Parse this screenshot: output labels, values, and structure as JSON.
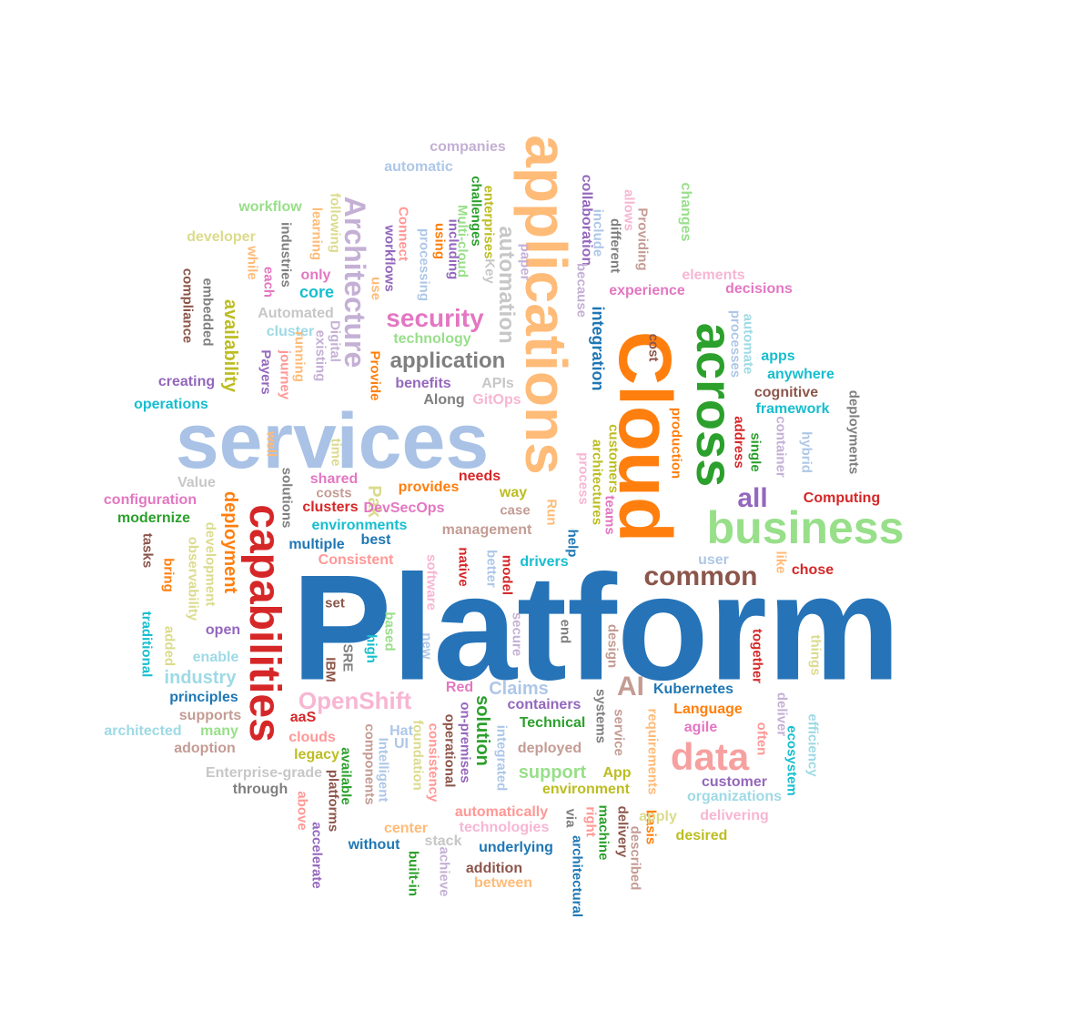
{
  "words": [
    {
      "text": "Platform",
      "color": "#2673B8"
    },
    {
      "text": "services",
      "color": "#A9C2E6"
    },
    {
      "text": "Cloud",
      "color": "#FF7F0E"
    },
    {
      "text": "applications",
      "color": "#FFBB78"
    },
    {
      "text": "business",
      "color": "#98DF8A"
    },
    {
      "text": "across",
      "color": "#2CA02C"
    },
    {
      "text": "capabilities",
      "color": "#D62728"
    },
    {
      "text": "Architecture",
      "color": "#C5B0D5"
    },
    {
      "text": "data",
      "color": "#F7A0A0"
    },
    {
      "text": "common",
      "color": "#8C564B"
    },
    {
      "text": "security",
      "color": "#E377C2"
    },
    {
      "text": "application",
      "color": "#7F7F7F"
    },
    {
      "text": "automation",
      "color": "#C7C7C7"
    },
    {
      "text": "OpenShift",
      "color": "#F7B6D2"
    },
    {
      "text": "all",
      "color": "#9467BD"
    },
    {
      "text": "integration",
      "color": "#1F77B4"
    },
    {
      "text": "AI",
      "color": "#C49C94"
    },
    {
      "text": "industry",
      "color": "#9EDAE5"
    },
    {
      "text": "availability",
      "color": "#BCBD22"
    },
    {
      "text": "deployment",
      "color": "#FF7F0E"
    },
    {
      "text": "Claims",
      "color": "#AEC7E8"
    },
    {
      "text": "support",
      "color": "#98DF8A"
    },
    {
      "text": "solution",
      "color": "#2CA02C"
    },
    {
      "text": "core",
      "color": "#17BECF"
    },
    {
      "text": "Pak",
      "color": "#DBDB8D"
    },
    {
      "text": "companies",
      "color": "#C5B0D5"
    },
    {
      "text": "automatic",
      "color": "#AEC7E8"
    },
    {
      "text": "collaboration",
      "color": "#9467BD"
    },
    {
      "text": "workflow",
      "color": "#98DF8A"
    },
    {
      "text": "changes",
      "color": "#98DF8A"
    },
    {
      "text": "enterprises",
      "color": "#BCBD22"
    },
    {
      "text": "challenges",
      "color": "#2CA02C"
    },
    {
      "text": "Multi-cloud",
      "color": "#98DF8A"
    },
    {
      "text": "Connect",
      "color": "#FF9896"
    },
    {
      "text": "using",
      "color": "#FF7F0E"
    },
    {
      "text": "including",
      "color": "#9467BD"
    },
    {
      "text": "following",
      "color": "#DBDB8D"
    },
    {
      "text": "learning",
      "color": "#FFBB78"
    },
    {
      "text": "workflows",
      "color": "#9467BD"
    },
    {
      "text": "processing",
      "color": "#AEC7E8"
    },
    {
      "text": "industries",
      "color": "#7F7F7F"
    },
    {
      "text": "developer",
      "color": "#DBDB8D"
    },
    {
      "text": "compliance",
      "color": "#8C564B"
    },
    {
      "text": "embedded",
      "color": "#7F7F7F"
    },
    {
      "text": "while",
      "color": "#FFBB78"
    },
    {
      "text": "each",
      "color": "#E377C2"
    },
    {
      "text": "only",
      "color": "#E377C2"
    },
    {
      "text": "use",
      "color": "#FFBB78"
    },
    {
      "text": "Key",
      "color": "#C7C7C7"
    },
    {
      "text": "paper",
      "color": "#C5B0D5"
    },
    {
      "text": "because",
      "color": "#C5B0D5"
    },
    {
      "text": "include",
      "color": "#AEC7E8"
    },
    {
      "text": "different",
      "color": "#7F7F7F"
    },
    {
      "text": "allows",
      "color": "#F7B6D2"
    },
    {
      "text": "Providing",
      "color": "#C49C94"
    },
    {
      "text": "elements",
      "color": "#F7B6D2"
    },
    {
      "text": "experience",
      "color": "#E377C2"
    },
    {
      "text": "decisions",
      "color": "#E377C2"
    },
    {
      "text": "Automated",
      "color": "#C7C7C7"
    },
    {
      "text": "cluster",
      "color": "#9EDAE5"
    },
    {
      "text": "technology",
      "color": "#98DF8A"
    },
    {
      "text": "Digital",
      "color": "#C5B0D5"
    },
    {
      "text": "existing",
      "color": "#C5B0D5"
    },
    {
      "text": "running",
      "color": "#FFBB78"
    },
    {
      "text": "journey",
      "color": "#FF9896"
    },
    {
      "text": "Payers",
      "color": "#9467BD"
    },
    {
      "text": "Provide",
      "color": "#FF7F0E"
    },
    {
      "text": "benefits",
      "color": "#9467BD"
    },
    {
      "text": "APIs",
      "color": "#C7C7C7"
    },
    {
      "text": "Along",
      "color": "#7F7F7F"
    },
    {
      "text": "GitOps",
      "color": "#F7B6D2"
    },
    {
      "text": "creating",
      "color": "#9467BD"
    },
    {
      "text": "operations",
      "color": "#17BECF"
    },
    {
      "text": "cost",
      "color": "#8C564B"
    },
    {
      "text": "automate",
      "color": "#9EDAE5"
    },
    {
      "text": "processes",
      "color": "#AEC7E8"
    },
    {
      "text": "apps",
      "color": "#17BECF"
    },
    {
      "text": "anywhere",
      "color": "#17BECF"
    },
    {
      "text": "cognitive",
      "color": "#8C564B"
    },
    {
      "text": "framework",
      "color": "#17BECF"
    },
    {
      "text": "deployments",
      "color": "#7F7F7F"
    },
    {
      "text": "address",
      "color": "#D62728"
    },
    {
      "text": "single",
      "color": "#2CA02C"
    },
    {
      "text": "container",
      "color": "#C5B0D5"
    },
    {
      "text": "hybrid",
      "color": "#AEC7E8"
    },
    {
      "text": "production",
      "color": "#FF7F0E"
    },
    {
      "text": "customers",
      "color": "#BCBD22"
    },
    {
      "text": "architectures",
      "color": "#BCBD22"
    },
    {
      "text": "process",
      "color": "#F7B6D2"
    },
    {
      "text": "teams",
      "color": "#E377C2"
    },
    {
      "text": "Computing",
      "color": "#D62728"
    },
    {
      "text": "well",
      "color": "#FFBB78"
    },
    {
      "text": "time",
      "color": "#DBDB8D"
    },
    {
      "text": "solutions",
      "color": "#7F7F7F"
    },
    {
      "text": "shared",
      "color": "#E377C2"
    },
    {
      "text": "costs",
      "color": "#C49C94"
    },
    {
      "text": "provides",
      "color": "#FF7F0E"
    },
    {
      "text": "needs",
      "color": "#D62728"
    },
    {
      "text": "way",
      "color": "#BCBD22"
    },
    {
      "text": "case",
      "color": "#C49C94"
    },
    {
      "text": "Value",
      "color": "#C7C7C7"
    },
    {
      "text": "configuration",
      "color": "#E377C2"
    },
    {
      "text": "modernize",
      "color": "#2CA02C"
    },
    {
      "text": "clusters",
      "color": "#D62728"
    },
    {
      "text": "DevSecOps",
      "color": "#E377C2"
    },
    {
      "text": "environments",
      "color": "#17BECF"
    },
    {
      "text": "Run",
      "color": "#FFBB78"
    },
    {
      "text": "management",
      "color": "#C49C94"
    },
    {
      "text": "help",
      "color": "#1F77B4"
    },
    {
      "text": "tasks",
      "color": "#8C564B"
    },
    {
      "text": "development",
      "color": "#DBDB8D"
    },
    {
      "text": "observability",
      "color": "#DBDB8D"
    },
    {
      "text": "multiple",
      "color": "#1F77B4"
    },
    {
      "text": "best",
      "color": "#1F77B4"
    },
    {
      "text": "Consistent",
      "color": "#FF9896"
    },
    {
      "text": "software",
      "color": "#F7B6D2"
    },
    {
      "text": "native",
      "color": "#D62728"
    },
    {
      "text": "better",
      "color": "#AEC7E8"
    },
    {
      "text": "model",
      "color": "#D62728"
    },
    {
      "text": "drivers",
      "color": "#17BECF"
    },
    {
      "text": "user",
      "color": "#AEC7E8"
    },
    {
      "text": "like",
      "color": "#FFBB78"
    },
    {
      "text": "chose",
      "color": "#D62728"
    },
    {
      "text": "bring",
      "color": "#FF7F0E"
    },
    {
      "text": "traditional",
      "color": "#17BECF"
    },
    {
      "text": "added",
      "color": "#DBDB8D"
    },
    {
      "text": "open",
      "color": "#9467BD"
    },
    {
      "text": "set",
      "color": "#8C564B"
    },
    {
      "text": "based",
      "color": "#98DF8A"
    },
    {
      "text": "high",
      "color": "#17BECF"
    },
    {
      "text": "SRE",
      "color": "#7F7F7F"
    },
    {
      "text": "IBM",
      "color": "#8C564B"
    },
    {
      "text": "new",
      "color": "#AEC7E8"
    },
    {
      "text": "secure",
      "color": "#C5B0D5"
    },
    {
      "text": "end",
      "color": "#7F7F7F"
    },
    {
      "text": "design",
      "color": "#C49C94"
    },
    {
      "text": "together",
      "color": "#D62728"
    },
    {
      "text": "things",
      "color": "#DBDB8D"
    },
    {
      "text": "enable",
      "color": "#9EDAE5"
    },
    {
      "text": "principles",
      "color": "#1F77B4"
    },
    {
      "text": "Red",
      "color": "#E377C2"
    },
    {
      "text": "Kubernetes",
      "color": "#1F77B4"
    },
    {
      "text": "deliver",
      "color": "#C5B0D5"
    },
    {
      "text": "efficiency",
      "color": "#9EDAE5"
    },
    {
      "text": "supports",
      "color": "#C49C94"
    },
    {
      "text": "architected",
      "color": "#9EDAE5"
    },
    {
      "text": "many",
      "color": "#98DF8A"
    },
    {
      "text": "adoption",
      "color": "#C49C94"
    },
    {
      "text": "aaS",
      "color": "#D62728"
    },
    {
      "text": "clouds",
      "color": "#FF9896"
    },
    {
      "text": "legacy",
      "color": "#BCBD22"
    },
    {
      "text": "Enterprise-grade",
      "color": "#C7C7C7"
    },
    {
      "text": "through",
      "color": "#7F7F7F"
    },
    {
      "text": "components",
      "color": "#C49C94"
    },
    {
      "text": "Hat",
      "color": "#AEC7E8"
    },
    {
      "text": "UI",
      "color": "#AEC7E8"
    },
    {
      "text": "Intelligent",
      "color": "#AEC7E8"
    },
    {
      "text": "foundation",
      "color": "#DBDB8D"
    },
    {
      "text": "consistency",
      "color": "#FF9896"
    },
    {
      "text": "operational",
      "color": "#8C564B"
    },
    {
      "text": "on-premises",
      "color": "#9467BD"
    },
    {
      "text": "integrated",
      "color": "#AEC7E8"
    },
    {
      "text": "containers",
      "color": "#9467BD"
    },
    {
      "text": "Technical",
      "color": "#2CA02C"
    },
    {
      "text": "deployed",
      "color": "#C49C94"
    },
    {
      "text": "systems",
      "color": "#7F7F7F"
    },
    {
      "text": "service",
      "color": "#C49C94"
    },
    {
      "text": "requirements",
      "color": "#FFBB78"
    },
    {
      "text": "Language",
      "color": "#FF7F0E"
    },
    {
      "text": "agile",
      "color": "#E377C2"
    },
    {
      "text": "often",
      "color": "#FF9896"
    },
    {
      "text": "ecosystem",
      "color": "#17BECF"
    },
    {
      "text": "customer",
      "color": "#9467BD"
    },
    {
      "text": "organizations",
      "color": "#9EDAE5"
    },
    {
      "text": "App",
      "color": "#BCBD22"
    },
    {
      "text": "environment",
      "color": "#BCBD22"
    },
    {
      "text": "available",
      "color": "#2CA02C"
    },
    {
      "text": "above",
      "color": "#FF9896"
    },
    {
      "text": "platforms",
      "color": "#8C564B"
    },
    {
      "text": "accelerate",
      "color": "#9467BD"
    },
    {
      "text": "without",
      "color": "#1F77B4"
    },
    {
      "text": "center",
      "color": "#FFBB78"
    },
    {
      "text": "stack",
      "color": "#C7C7C7"
    },
    {
      "text": "automatically",
      "color": "#FF9896"
    },
    {
      "text": "technologies",
      "color": "#F7B6D2"
    },
    {
      "text": "underlying",
      "color": "#1F77B4"
    },
    {
      "text": "via",
      "color": "#7F7F7F"
    },
    {
      "text": "right",
      "color": "#FF9896"
    },
    {
      "text": "machine",
      "color": "#2CA02C"
    },
    {
      "text": "delivery",
      "color": "#8C564B"
    },
    {
      "text": "basis",
      "color": "#FF7F0E"
    },
    {
      "text": "described",
      "color": "#C49C94"
    },
    {
      "text": "apply",
      "color": "#DBDB8D"
    },
    {
      "text": "delivering",
      "color": "#F7B6D2"
    },
    {
      "text": "desired",
      "color": "#BCBD22"
    },
    {
      "text": "built-in",
      "color": "#2CA02C"
    },
    {
      "text": "achieve",
      "color": "#C5B0D5"
    },
    {
      "text": "addition",
      "color": "#8C564B"
    },
    {
      "text": "between",
      "color": "#FFBB78"
    },
    {
      "text": "architectural",
      "color": "#1F77B4"
    }
  ]
}
